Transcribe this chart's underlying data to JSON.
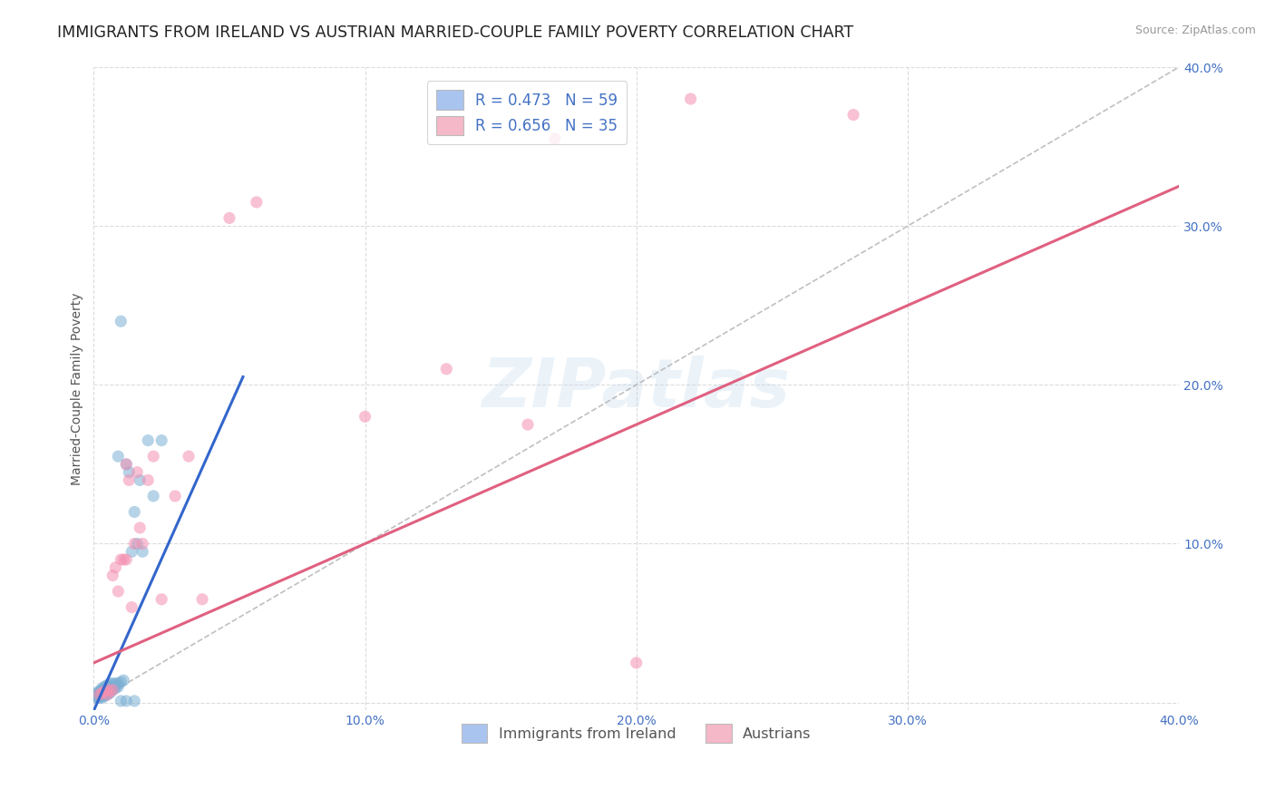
{
  "title": "IMMIGRANTS FROM IRELAND VS AUSTRIAN MARRIED-COUPLE FAMILY POVERTY CORRELATION CHART",
  "source": "Source: ZipAtlas.com",
  "ylabel": "Married-Couple Family Poverty",
  "xlim": [
    0.0,
    0.4
  ],
  "ylim": [
    -0.005,
    0.4
  ],
  "xtick_vals": [
    0.0,
    0.1,
    0.2,
    0.3,
    0.4
  ],
  "xtick_labels": [
    "0.0%",
    "10.0%",
    "20.0%",
    "30.0%",
    "40.0%"
  ],
  "ytick_vals": [
    0.0,
    0.1,
    0.2,
    0.3,
    0.4
  ],
  "ytick_labels": [
    "",
    "10.0%",
    "20.0%",
    "30.0%",
    "40.0%"
  ],
  "ireland_color": "#7bafd4",
  "austria_color": "#f48fb1",
  "legend_patch_blue": "#aac4f0",
  "legend_patch_pink": "#f5b8c8",
  "legend_line1": "R = 0.473   N = 59",
  "legend_line2": "R = 0.656   N = 35",
  "legend_bottom_blue": "Immigrants from Ireland",
  "legend_bottom_pink": "Austrians",
  "watermark": "ZIPatlas",
  "bg_color": "#ffffff",
  "grid_color": "#d8d8d8",
  "ireland_line": [
    0.0,
    -0.005,
    0.055,
    0.205
  ],
  "austria_line": [
    0.0,
    0.025,
    0.4,
    0.325
  ],
  "diag_line": [
    0.0,
    0.0,
    0.4,
    0.4
  ],
  "ireland_scatter": [
    [
      0.001,
      0.003
    ],
    [
      0.001,
      0.004
    ],
    [
      0.001,
      0.005
    ],
    [
      0.001,
      0.006
    ],
    [
      0.002,
      0.003
    ],
    [
      0.002,
      0.004
    ],
    [
      0.002,
      0.005
    ],
    [
      0.002,
      0.006
    ],
    [
      0.002,
      0.007
    ],
    [
      0.003,
      0.003
    ],
    [
      0.003,
      0.004
    ],
    [
      0.003,
      0.005
    ],
    [
      0.003,
      0.006
    ],
    [
      0.003,
      0.007
    ],
    [
      0.003,
      0.008
    ],
    [
      0.003,
      0.009
    ],
    [
      0.004,
      0.004
    ],
    [
      0.004,
      0.005
    ],
    [
      0.004,
      0.006
    ],
    [
      0.004,
      0.007
    ],
    [
      0.004,
      0.008
    ],
    [
      0.004,
      0.01
    ],
    [
      0.005,
      0.005
    ],
    [
      0.005,
      0.006
    ],
    [
      0.005,
      0.007
    ],
    [
      0.005,
      0.008
    ],
    [
      0.005,
      0.01
    ],
    [
      0.005,
      0.011
    ],
    [
      0.006,
      0.006
    ],
    [
      0.006,
      0.007
    ],
    [
      0.006,
      0.009
    ],
    [
      0.006,
      0.01
    ],
    [
      0.006,
      0.012
    ],
    [
      0.007,
      0.008
    ],
    [
      0.007,
      0.009
    ],
    [
      0.007,
      0.01
    ],
    [
      0.007,
      0.012
    ],
    [
      0.008,
      0.009
    ],
    [
      0.008,
      0.01
    ],
    [
      0.008,
      0.012
    ],
    [
      0.009,
      0.01
    ],
    [
      0.009,
      0.012
    ],
    [
      0.009,
      0.155
    ],
    [
      0.01,
      0.013
    ],
    [
      0.01,
      0.24
    ],
    [
      0.011,
      0.014
    ],
    [
      0.012,
      0.15
    ],
    [
      0.013,
      0.145
    ],
    [
      0.014,
      0.095
    ],
    [
      0.015,
      0.12
    ],
    [
      0.016,
      0.1
    ],
    [
      0.017,
      0.14
    ],
    [
      0.018,
      0.095
    ],
    [
      0.02,
      0.165
    ],
    [
      0.022,
      0.13
    ],
    [
      0.025,
      0.165
    ],
    [
      0.01,
      0.001
    ],
    [
      0.012,
      0.001
    ],
    [
      0.015,
      0.001
    ]
  ],
  "austria_scatter": [
    [
      0.002,
      0.005
    ],
    [
      0.003,
      0.006
    ],
    [
      0.004,
      0.007
    ],
    [
      0.005,
      0.005
    ],
    [
      0.005,
      0.008
    ],
    [
      0.006,
      0.007
    ],
    [
      0.007,
      0.008
    ],
    [
      0.007,
      0.08
    ],
    [
      0.008,
      0.085
    ],
    [
      0.009,
      0.07
    ],
    [
      0.01,
      0.09
    ],
    [
      0.011,
      0.09
    ],
    [
      0.012,
      0.09
    ],
    [
      0.012,
      0.15
    ],
    [
      0.013,
      0.14
    ],
    [
      0.014,
      0.06
    ],
    [
      0.015,
      0.1
    ],
    [
      0.016,
      0.145
    ],
    [
      0.017,
      0.11
    ],
    [
      0.018,
      0.1
    ],
    [
      0.02,
      0.14
    ],
    [
      0.022,
      0.155
    ],
    [
      0.025,
      0.065
    ],
    [
      0.03,
      0.13
    ],
    [
      0.035,
      0.155
    ],
    [
      0.04,
      0.065
    ],
    [
      0.05,
      0.305
    ],
    [
      0.06,
      0.315
    ],
    [
      0.1,
      0.18
    ],
    [
      0.13,
      0.21
    ],
    [
      0.17,
      0.355
    ],
    [
      0.2,
      0.025
    ],
    [
      0.28,
      0.37
    ],
    [
      0.22,
      0.38
    ],
    [
      0.16,
      0.175
    ]
  ]
}
